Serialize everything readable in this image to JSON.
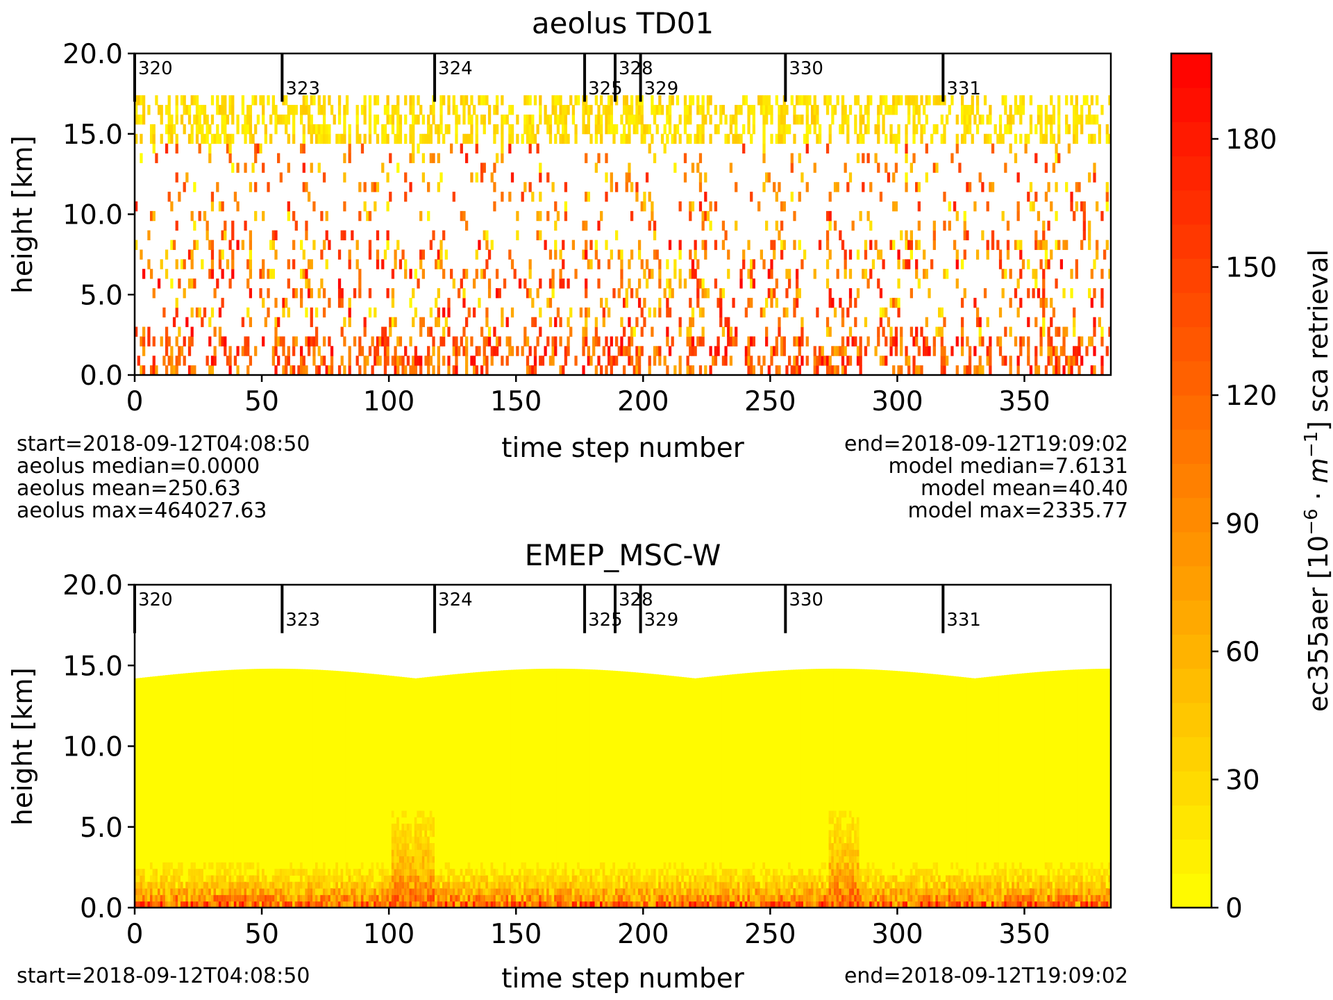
{
  "chart_data": [
    {
      "type": "heatmap",
      "title": "aeolus TD01",
      "xlabel": "time step number",
      "ylabel": "height [km]",
      "xlim": [
        0,
        384
      ],
      "ylim": [
        0.0,
        20.0
      ],
      "xticks": [
        0,
        50,
        100,
        150,
        200,
        250,
        300,
        350
      ],
      "yticks": [
        "0.0",
        "5.0",
        "10.0",
        "15.0",
        "20.0"
      ],
      "orbit_markers": [
        {
          "x": 0,
          "label": "320",
          "label_row": "top"
        },
        {
          "x": 58,
          "label": "323",
          "label_row": "bottom"
        },
        {
          "x": 118,
          "label": "324",
          "label_row": "top"
        },
        {
          "x": 177,
          "label": "325",
          "label_row": "bottom"
        },
        {
          "x": 189,
          "label": "328",
          "label_row": "top"
        },
        {
          "x": 199,
          "label": "329",
          "label_row": "bottom"
        },
        {
          "x": 256,
          "label": "330",
          "label_row": "top"
        },
        {
          "x": 318,
          "label": "331",
          "label_row": "bottom"
        }
      ],
      "stats_left": [
        "start=2018-09-12T04:08:50",
        "aeolus median=0.0000",
        "aeolus mean=250.63",
        "aeolus max=464027.63"
      ],
      "stats_right": [
        "end=2018-09-12T19:09:02",
        "model median=7.6131",
        "model mean=40.40",
        "model max=2335.77"
      ]
    },
    {
      "type": "heatmap",
      "title": "EMEP_MSC-W",
      "xlabel": "time step number",
      "ylabel": "height [km]",
      "xlim": [
        0,
        384
      ],
      "ylim": [
        0.0,
        20.0
      ],
      "xticks": [
        0,
        50,
        100,
        150,
        200,
        250,
        300,
        350
      ],
      "yticks": [
        "0.0",
        "5.0",
        "10.0",
        "15.0",
        "20.0"
      ],
      "orbit_markers": [
        {
          "x": 0,
          "label": "320",
          "label_row": "top"
        },
        {
          "x": 58,
          "label": "323",
          "label_row": "bottom"
        },
        {
          "x": 118,
          "label": "324",
          "label_row": "top"
        },
        {
          "x": 177,
          "label": "325",
          "label_row": "bottom"
        },
        {
          "x": 189,
          "label": "328",
          "label_row": "top"
        },
        {
          "x": 199,
          "label": "329",
          "label_row": "bottom"
        },
        {
          "x": 256,
          "label": "330",
          "label_row": "top"
        },
        {
          "x": 318,
          "label": "331",
          "label_row": "bottom"
        }
      ],
      "stats_left": [
        "start=2018-09-12T04:08:50"
      ],
      "stats_right": [
        "end=2018-09-12T19:09:02"
      ]
    }
  ],
  "colorbar": {
    "label": "ec355aer [10⁻⁶ · m⁻¹] sca retrieval",
    "label_parts": {
      "prefix": "ec355aer [10",
      "exp1": "−6",
      "mid": " · ",
      "unit": "m",
      "exp2": "−1",
      "suffix": "] sca retrieval"
    },
    "range": [
      0,
      200
    ],
    "ticks": [
      0,
      30,
      60,
      90,
      120,
      150,
      180
    ],
    "levels": 25,
    "colors": [
      "#ffff00",
      "#ff8000",
      "#ff0000"
    ]
  }
}
